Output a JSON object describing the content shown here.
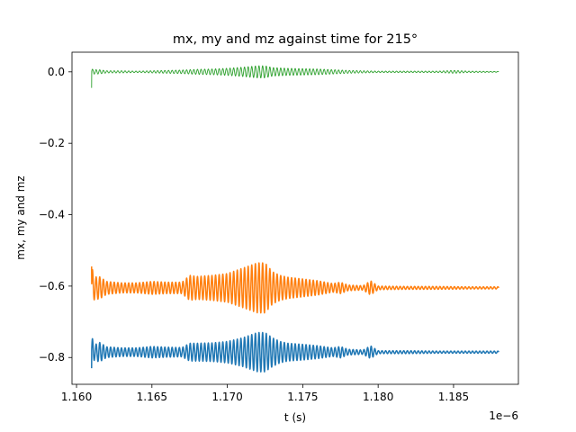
{
  "chart_data": {
    "type": "line",
    "title": "mx, my and mz against time for 215°",
    "xlabel": "t (s)",
    "ylabel": "mx, my and mz",
    "x_offset_label": "1e−6",
    "xlim": [
      1.1597,
      1.1893
    ],
    "ylim": [
      -0.875,
      0.055
    ],
    "x_ticks": [
      1.16,
      1.165,
      1.17,
      1.175,
      1.18,
      1.185
    ],
    "x_tick_labels": [
      "1.160",
      "1.165",
      "1.170",
      "1.175",
      "1.180",
      "1.185"
    ],
    "y_ticks": [
      0.0,
      -0.2,
      -0.4,
      -0.6,
      -0.8
    ],
    "y_tick_labels": [
      "0.0",
      "−0.2",
      "−0.4",
      "−0.6",
      "−0.8"
    ],
    "grid": false,
    "legend": "none",
    "x_range": [
      1.161,
      1.188
    ],
    "series": [
      {
        "color": "#1f77b4",
        "stroke_width": 1.5,
        "center": -0.785,
        "envelope_x": [
          1.161,
          1.1612,
          1.1615,
          1.162,
          1.163,
          1.164,
          1.165,
          1.166,
          1.167,
          1.1675,
          1.168,
          1.169,
          1.17,
          1.171,
          1.172,
          1.1725,
          1.173,
          1.1735,
          1.174,
          1.175,
          1.176,
          1.177,
          1.1775,
          1.178,
          1.179,
          1.1795,
          1.18,
          1.182,
          1.184,
          1.186,
          1.188
        ],
        "envelope_amp": [
          0.045,
          0.02,
          0.028,
          0.015,
          0.012,
          0.012,
          0.016,
          0.014,
          0.013,
          0.025,
          0.025,
          0.026,
          0.03,
          0.04,
          0.055,
          0.055,
          0.04,
          0.03,
          0.025,
          0.022,
          0.018,
          0.012,
          0.016,
          0.008,
          0.006,
          0.018,
          0.004,
          0.004,
          0.003,
          0.003,
          0.003
        ],
        "period": 0.00024
      },
      {
        "color": "#ff7f0e",
        "stroke_width": 1.5,
        "center": -0.605,
        "envelope_x": [
          1.161,
          1.1612,
          1.1615,
          1.162,
          1.163,
          1.164,
          1.165,
          1.166,
          1.167,
          1.1675,
          1.168,
          1.169,
          1.17,
          1.171,
          1.172,
          1.1725,
          1.173,
          1.1735,
          1.174,
          1.175,
          1.176,
          1.177,
          1.1775,
          1.178,
          1.179,
          1.1795,
          1.18,
          1.182,
          1.184,
          1.186,
          1.188
        ],
        "envelope_amp": [
          0.06,
          0.03,
          0.032,
          0.018,
          0.014,
          0.014,
          0.018,
          0.016,
          0.016,
          0.035,
          0.032,
          0.035,
          0.04,
          0.055,
          0.07,
          0.07,
          0.045,
          0.035,
          0.03,
          0.025,
          0.02,
          0.012,
          0.016,
          0.008,
          0.006,
          0.02,
          0.005,
          0.004,
          0.004,
          0.003,
          0.003
        ],
        "period": 0.00024
      },
      {
        "color": "#2ca02c",
        "stroke_width": 0.9,
        "center": 0.0,
        "envelope_x": [
          1.161,
          1.1612,
          1.1615,
          1.162,
          1.163,
          1.164,
          1.165,
          1.166,
          1.167,
          1.168,
          1.169,
          1.17,
          1.171,
          1.172,
          1.1725,
          1.173,
          1.174,
          1.175,
          1.176,
          1.177,
          1.178,
          1.179,
          1.18,
          1.182,
          1.184,
          1.185,
          1.186,
          1.188
        ],
        "envelope_amp": [
          0.008,
          0.006,
          0.006,
          0.003,
          0.003,
          0.002,
          0.003,
          0.004,
          0.005,
          0.007,
          0.008,
          0.01,
          0.013,
          0.017,
          0.017,
          0.012,
          0.01,
          0.009,
          0.008,
          0.006,
          0.004,
          0.003,
          0.002,
          0.002,
          0.002,
          0.004,
          0.002,
          0.001
        ],
        "period": 0.00024
      }
    ]
  }
}
